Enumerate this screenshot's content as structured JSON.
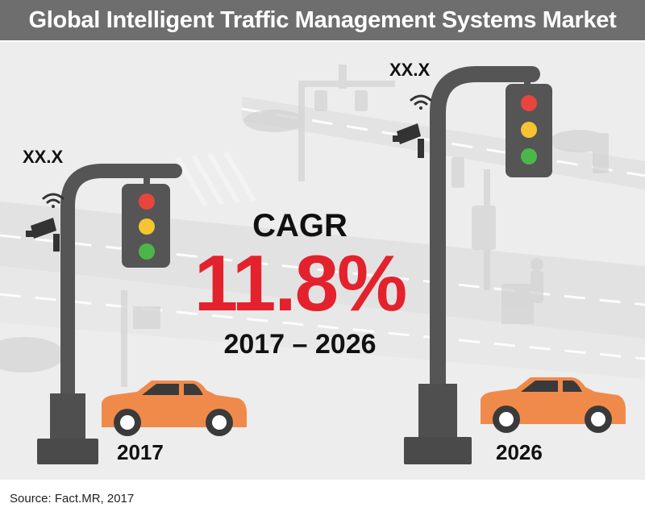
{
  "title": "Global Intelligent Traffic Management Systems Market",
  "left": {
    "value": "XX.X",
    "year": "2017"
  },
  "right": {
    "value": "XX.X",
    "year": "2026"
  },
  "cagr": {
    "label": "CAGR",
    "value": "11.8%",
    "period": "2017 – 2026"
  },
  "source": {
    "label": "Source:",
    "text": "Fact.MR, 2017"
  },
  "colors": {
    "title_bar": "#6e6e6e",
    "cagr_value": "#e3222d",
    "car": "#f08a4b",
    "pole": "#555555",
    "light_red": "#e8453c",
    "light_yellow": "#f5c431",
    "light_green": "#4cb748"
  },
  "icons": [
    "traffic-light-icon",
    "cctv-camera-icon",
    "wifi-icon",
    "car-icon",
    "pole-icon"
  ]
}
